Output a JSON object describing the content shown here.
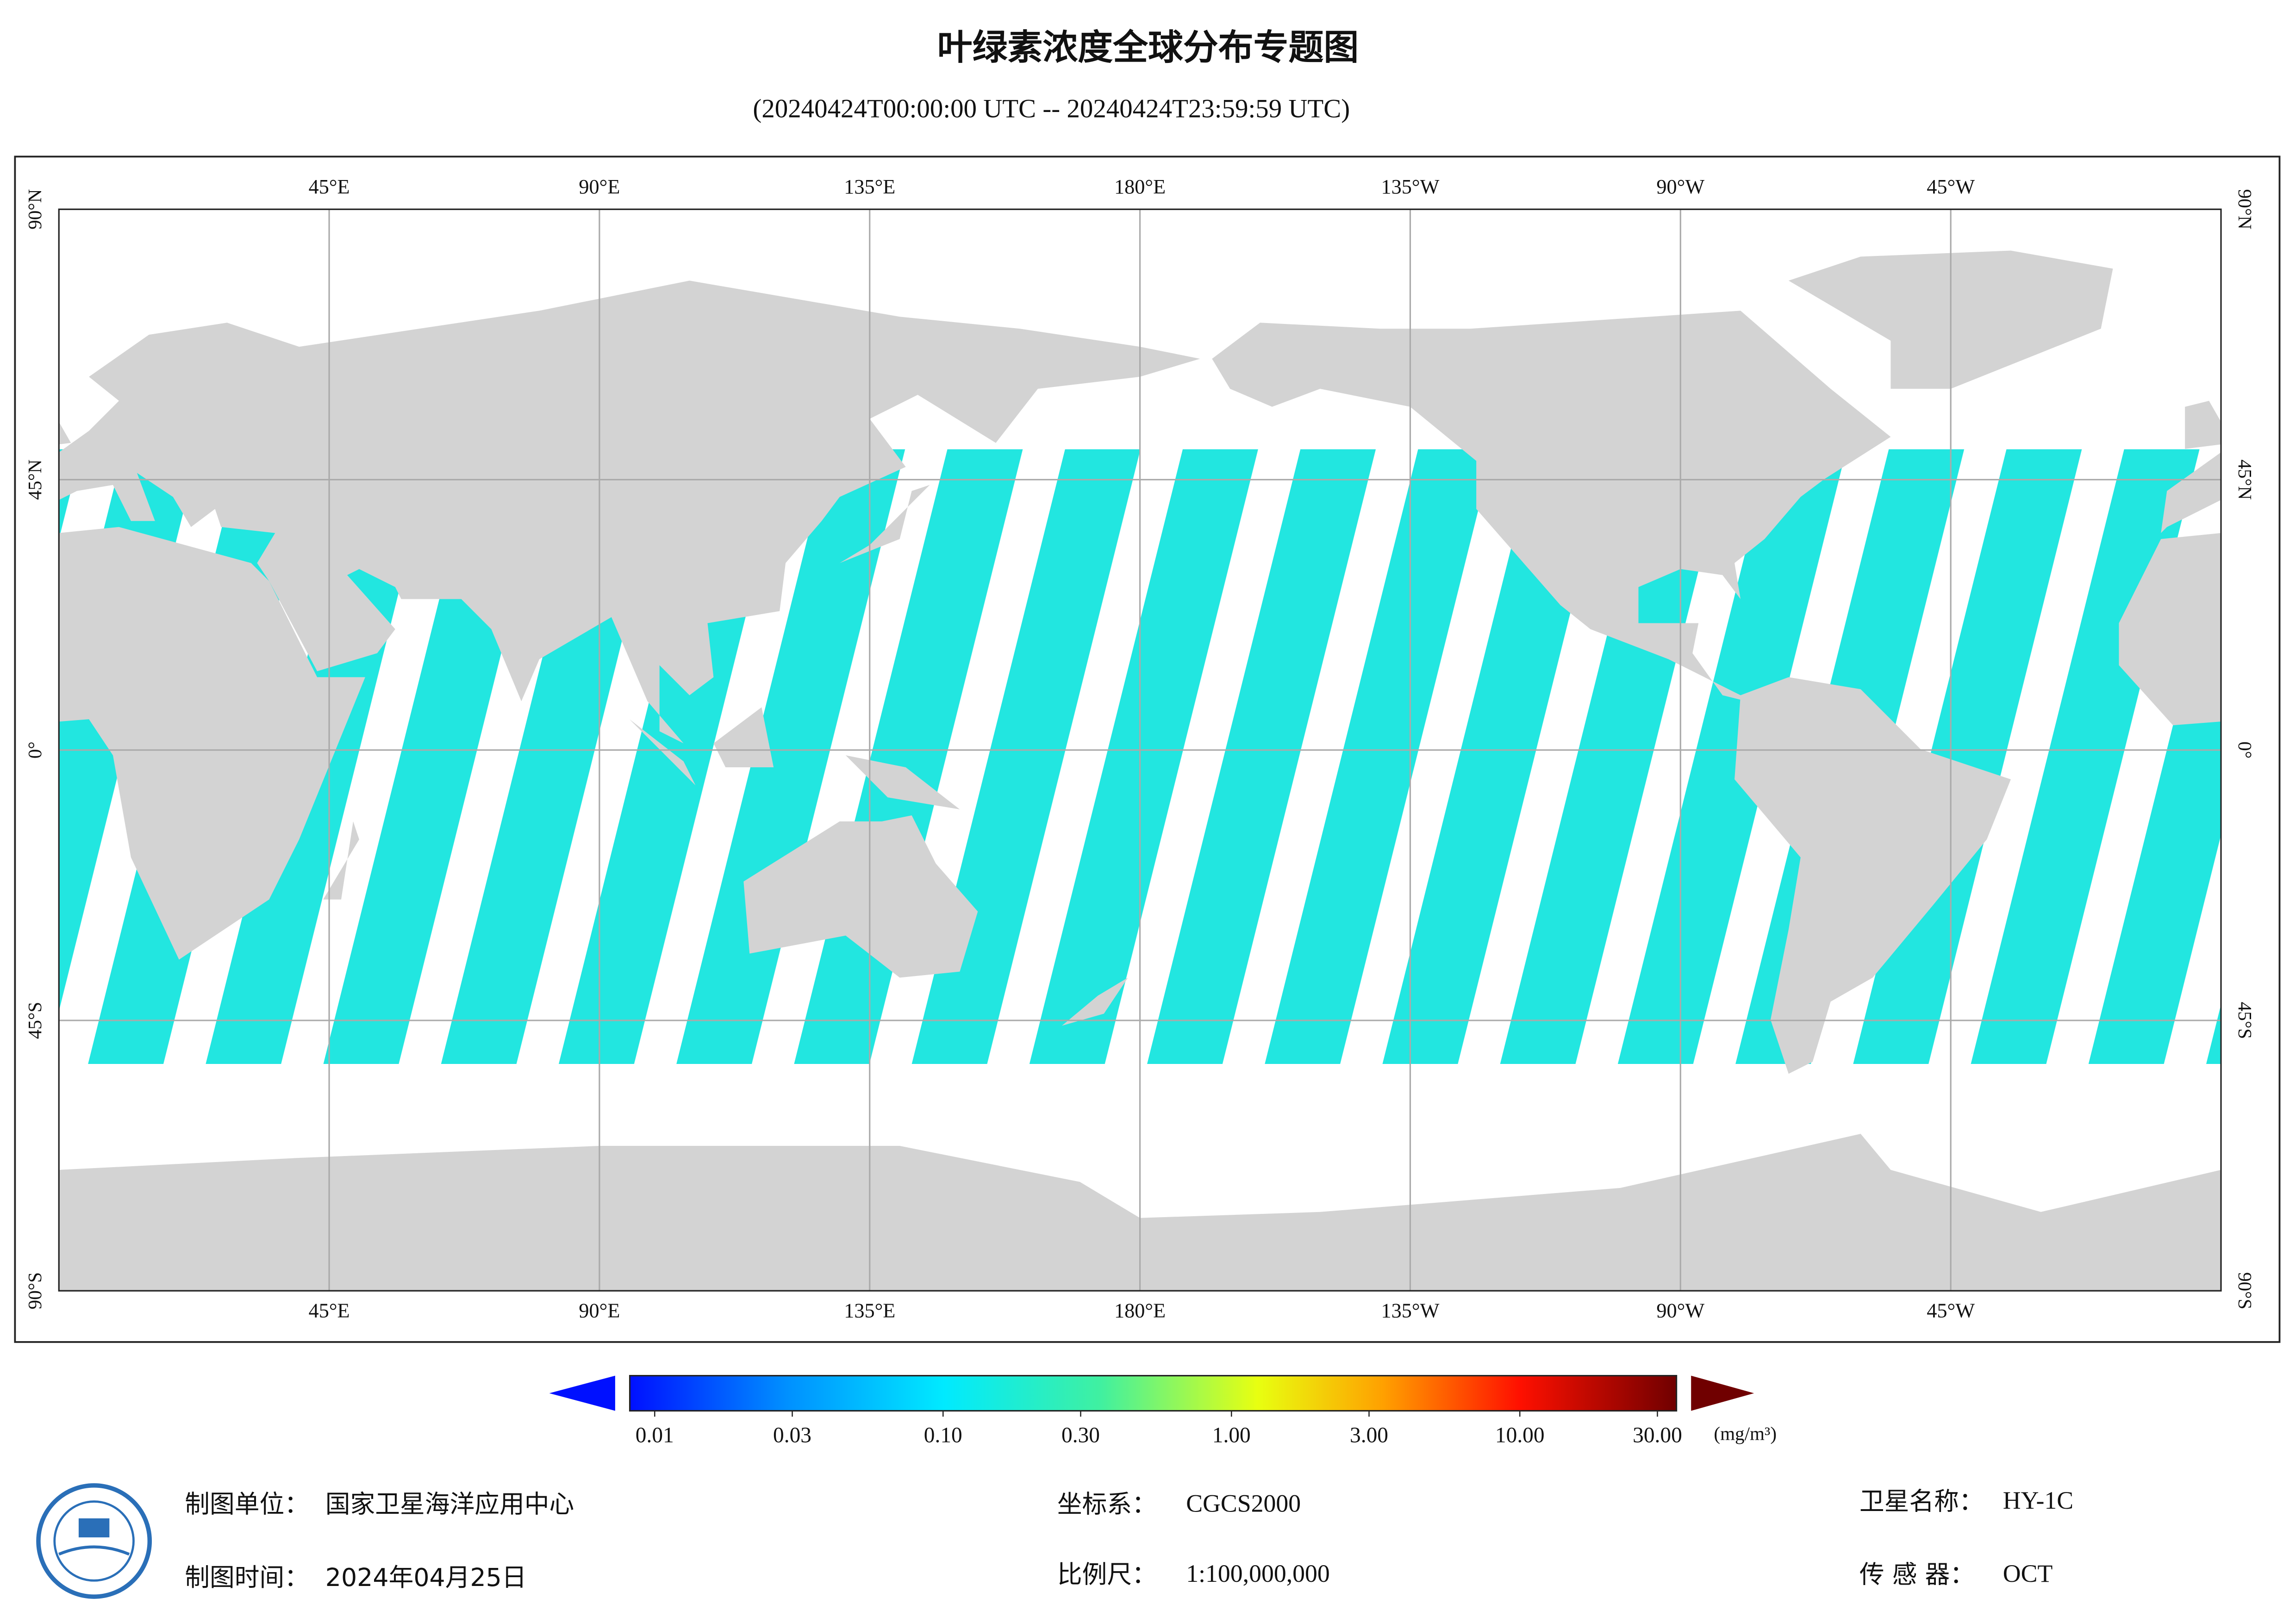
{
  "header": {
    "title": "叶绿素浓度全球分布专题图",
    "subtitle": "(20240424T00:00:00 UTC -- 20240424T23:59:59 UTC)"
  },
  "map": {
    "xlim": [
      0,
      360
    ],
    "ylim": [
      -90,
      90
    ],
    "xticks": [
      {
        "value": 45,
        "label": "45°E"
      },
      {
        "value": 90,
        "label": "90°E"
      },
      {
        "value": 135,
        "label": "135°E"
      },
      {
        "value": 180,
        "label": "180°E"
      },
      {
        "value": -135,
        "label": "135°W"
      },
      {
        "value": -90,
        "label": "90°W"
      },
      {
        "value": -45,
        "label": "45°W"
      }
    ],
    "yticks": [
      {
        "value": 90,
        "label": "90°N"
      },
      {
        "value": 45,
        "label": "45°N"
      },
      {
        "value": 0,
        "label": "0°"
      },
      {
        "value": -45,
        "label": "45°S"
      },
      {
        "value": -90,
        "label": "90°S"
      }
    ]
  },
  "colorbar": {
    "log": true,
    "range": [
      0.01,
      30
    ],
    "ticks": [
      0.01,
      0.03,
      {
        "value": 0.1,
        "label": "0.10"
      },
      {
        "value": 0.3,
        "label": "0.30"
      },
      {
        "value": 1,
        "label": "1.00"
      },
      {
        "value": 3,
        "label": "3.00"
      },
      {
        "value": 10,
        "label": "10.00"
      },
      {
        "value": 30,
        "label": "30.00"
      }
    ],
    "unit": "(mg/m³)"
  },
  "footer": {
    "unit": {
      "label": "制图单位：",
      "value": "国家卫星海洋应用中心"
    },
    "date": {
      "label": "制图时间：",
      "value": "2024年04月25日"
    },
    "crs": {
      "label": "坐标系：",
      "value": "CGCS2000"
    },
    "scale": {
      "label": "比例尺：",
      "value": "1:100,000,000"
    },
    "satellite": {
      "label": "卫星名称：",
      "value": "HY-1C"
    },
    "sensor": {
      "label": "传 感 器：",
      "value": "OCT"
    }
  }
}
